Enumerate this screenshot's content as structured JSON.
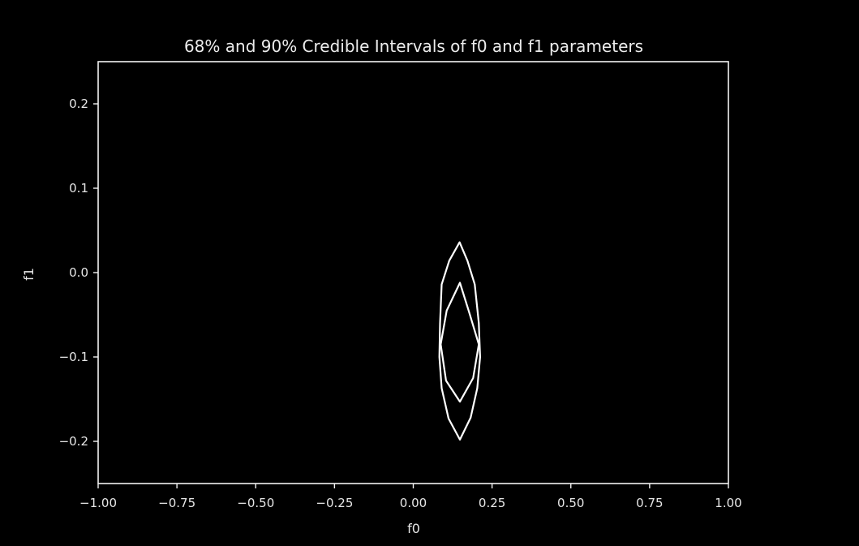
{
  "chart_data": {
    "type": "contour",
    "title": "68% and 90% Credible Intervals of f0 and f1 parameters",
    "xlabel": "f0",
    "ylabel": "f1",
    "xlim": [
      -1.0,
      1.0
    ],
    "ylim": [
      -0.25,
      0.25
    ],
    "xticks": [
      -1.0,
      -0.75,
      -0.5,
      -0.25,
      0.0,
      0.25,
      0.5,
      0.75,
      1.0
    ],
    "xtick_labels": [
      "−1.00",
      "−0.75",
      "−0.50",
      "−0.25",
      "0.00",
      "0.25",
      "0.50",
      "0.75",
      "1.00"
    ],
    "yticks": [
      0.2,
      0.1,
      0.0,
      -0.1,
      -0.2
    ],
    "ytick_labels": [
      "0.2",
      "0.1",
      "0.0",
      "−0.1",
      "−0.2"
    ],
    "grid": false,
    "background": "#000000",
    "line_color": "#ffffff",
    "contours": [
      {
        "level": "68%",
        "points": [
          [
            0.148,
            -0.012
          ],
          [
            0.178,
            -0.048
          ],
          [
            0.208,
            -0.085
          ],
          [
            0.19,
            -0.125
          ],
          [
            0.148,
            -0.153
          ],
          [
            0.104,
            -0.128
          ],
          [
            0.087,
            -0.085
          ],
          [
            0.106,
            -0.045
          ]
        ]
      },
      {
        "level": "90%",
        "points": [
          [
            0.147,
            0.036
          ],
          [
            0.172,
            0.014
          ],
          [
            0.195,
            -0.014
          ],
          [
            0.208,
            -0.06
          ],
          [
            0.212,
            -0.1
          ],
          [
            0.203,
            -0.137
          ],
          [
            0.182,
            -0.172
          ],
          [
            0.148,
            -0.198
          ],
          [
            0.112,
            -0.173
          ],
          [
            0.09,
            -0.137
          ],
          [
            0.083,
            -0.1
          ],
          [
            0.085,
            -0.06
          ],
          [
            0.09,
            -0.014
          ],
          [
            0.114,
            0.014
          ]
        ]
      }
    ]
  }
}
